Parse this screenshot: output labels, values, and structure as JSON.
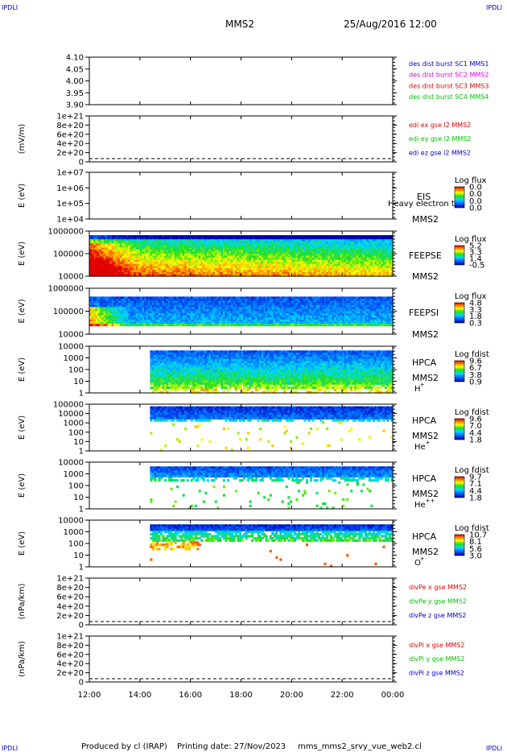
{
  "corner_marks": {
    "tl": "IPDLI",
    "tr": "IPDLI",
    "bl": "IPDLI",
    "br": "IPDLI"
  },
  "header": {
    "spacecraft": "MMS2",
    "datetime": "25/Aug/2016 12:00"
  },
  "footer": {
    "produced_by": "Produced by cl (IRAP)",
    "printing_date": "Printing date: 27/Nov/2023",
    "script_name": "mms_mms2_srvy_vue_web2.cl"
  },
  "colors": {
    "mms1": "#0000c0",
    "mms2": "#e000e0",
    "mms3": "#e00000",
    "mms4": "#00c000",
    "red": "#e00000",
    "green": "#00c000",
    "blue": "#0000c0"
  },
  "chart_data": {
    "type": "heatmap",
    "x_ticks": [
      "12:00",
      "14:00",
      "16:00",
      "18:00",
      "20:00",
      "22:00",
      "00:00"
    ],
    "x_range_hours": [
      12,
      24
    ],
    "panels": [
      {
        "type": "line",
        "yticks": [
          "4.10",
          "4.05",
          "4.00",
          "3.95",
          "3.90"
        ],
        "ylim": [
          3.9,
          4.1
        ],
        "ylabel": "",
        "legend": [
          {
            "text": "des dist burst SC1 MMS1",
            "color": "#0000c0"
          },
          {
            "text": "des dist burst SC2 MMS2",
            "color": "#e000e0"
          },
          {
            "text": "des dist burst SC3 MMS3",
            "color": "#e00000"
          },
          {
            "text": "des dist burst SC4 MMS4",
            "color": "#00c000"
          }
        ]
      },
      {
        "type": "line",
        "yticks": [
          "1e+21",
          "8e+20",
          "6e+20",
          "4e+20",
          "2e+20",
          "0"
        ],
        "ylabel": "(mV/m)",
        "zero_line": true,
        "legend": [
          {
            "text": "edi ex gse l2 MMS2",
            "color": "#e00000"
          },
          {
            "text": "edi ey gse l2 MMS2",
            "color": "#00c000"
          },
          {
            "text": "edi ez gse l2 MMS2",
            "color": "#0000c0"
          }
        ]
      },
      {
        "type": "heatmap",
        "yticks": [
          "1e+07",
          "1e+06",
          "1e+05",
          "1e+04"
        ],
        "ylabel": "E (eV)",
        "side_labels": [
          "EIS",
          "MMS2"
        ],
        "overlay": "Heavy electron to",
        "colorbar": {
          "title": "Log flux",
          "ticks": [
            "0.0",
            "0.0",
            "0.0",
            "0.0"
          ]
        },
        "empty": true
      },
      {
        "type": "heatmap",
        "yticks": [
          "1000000",
          "100000",
          "10000"
        ],
        "ylabel": "E (eV)",
        "side_labels": [
          "FEEPSE",
          "MMS2"
        ],
        "colorbar": {
          "title": "Log flux",
          "ticks": [
            "5.2",
            "3.3",
            "1.4",
            "-0.5"
          ]
        },
        "spectro": "feepse",
        "start_hour": 12.0
      },
      {
        "type": "heatmap",
        "yticks": [
          "1000000",
          "100000",
          "10000"
        ],
        "ylabel": "E (eV)",
        "side_labels": [
          "FEEPSI",
          "MMS2"
        ],
        "colorbar": {
          "title": "Log flux",
          "ticks": [
            "4.8",
            "3.3",
            "1.8",
            "0.3"
          ]
        },
        "spectro": "feepsi",
        "start_hour": 12.0
      },
      {
        "type": "heatmap",
        "yticks": [
          "10000",
          "1000",
          "100",
          "10",
          "1"
        ],
        "ylabel": "E (eV)",
        "side_labels": [
          "HPCA",
          "MMS2"
        ],
        "species": "H",
        "species_sup": "+",
        "colorbar": {
          "title": "Log fdist",
          "ticks": [
            "9.6",
            "6.7",
            "3.8",
            "0.9"
          ]
        },
        "spectro": "hpca_h",
        "start_hour": 14.4
      },
      {
        "type": "heatmap",
        "yticks": [
          "100000",
          "10000",
          "1000",
          "100",
          "10",
          "1"
        ],
        "ylabel": "E (eV)",
        "side_labels": [
          "HPCA",
          "MMS2"
        ],
        "species": "He",
        "species_sup": "+",
        "colorbar": {
          "title": "Log fdist",
          "ticks": [
            "9.6",
            "7.0",
            "4.4",
            "1.8"
          ]
        },
        "spectro": "hpca_he",
        "start_hour": 14.4
      },
      {
        "type": "heatmap",
        "yticks": [
          "10000",
          "1000",
          "100",
          "10",
          "1"
        ],
        "ylabel": "E (eV)",
        "side_labels": [
          "HPCA",
          "MMS2"
        ],
        "species": "He",
        "species_sup": "++",
        "colorbar": {
          "title": "Log fdist",
          "ticks": [
            "9.7",
            "7.1",
            "4.4",
            "1.8"
          ]
        },
        "spectro": "hpca_hepp",
        "start_hour": 14.4
      },
      {
        "type": "heatmap",
        "yticks": [
          "10000",
          "1000",
          "100",
          "10",
          "1"
        ],
        "ylabel": "E (eV)",
        "side_labels": [
          "HPCA",
          "MMS2"
        ],
        "species": "O",
        "species_sup": "+",
        "colorbar": {
          "title": "Log fdist",
          "ticks": [
            "10.7",
            "8.1",
            "5.6",
            "3.0"
          ]
        },
        "spectro": "hpca_o",
        "start_hour": 14.4
      },
      {
        "type": "line",
        "yticks": [
          "1e+21",
          "8e+20",
          "6e+20",
          "4e+20",
          "2e+20",
          "0"
        ],
        "ylabel": "(nPa/km)",
        "zero_line": true,
        "legend": [
          {
            "text": "divPe x gse MMS2",
            "color": "#e00000"
          },
          {
            "text": "divPe y gse MMS2",
            "color": "#00c000"
          },
          {
            "text": "divPe z gse MMS2",
            "color": "#0000c0"
          }
        ]
      },
      {
        "type": "line",
        "yticks": [
          "1e+21",
          "8e+20",
          "6e+20",
          "4e+20",
          "2e+20",
          "0"
        ],
        "ylabel": "(nPa/km)",
        "zero_line": true,
        "legend": [
          {
            "text": "divPi x gse MMS2",
            "color": "#e00000"
          },
          {
            "text": "divPi y gse MMS2",
            "color": "#00c000"
          },
          {
            "text": "divPi z gse MMS2",
            "color": "#0000c0"
          }
        ]
      }
    ]
  }
}
